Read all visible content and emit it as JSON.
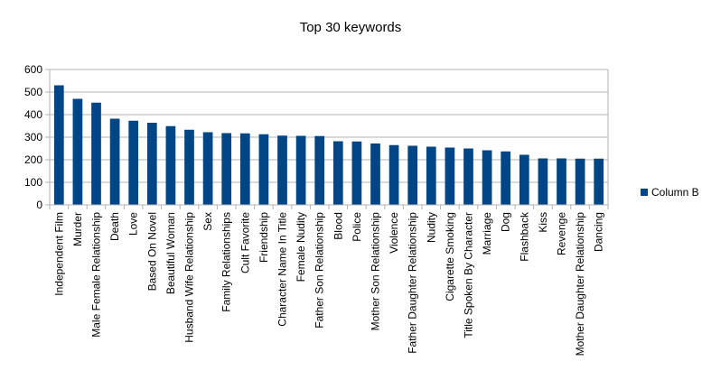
{
  "chart_data": {
    "type": "bar",
    "title": "Top 30 keywords",
    "xlabel": "",
    "ylabel": "",
    "ylim": [
      0,
      600
    ],
    "yticks": [
      0,
      100,
      200,
      300,
      400,
      500,
      600
    ],
    "grid": true,
    "legend_position": "right",
    "bar_color": "#004586",
    "categories": [
      "Independent Film",
      "Murder",
      "Male Female Relationship",
      "Death",
      "Love",
      "Based On Novel",
      "Beautiful Woman",
      "Husband Wife Relationship",
      "Sex",
      "Family Relationships",
      "Cult Favorite",
      "Friendship",
      "Character Name In Title",
      "Female Nudity",
      "Father Son Relationship",
      "Blood",
      "Police",
      "Mother Son Relationship",
      "Violence",
      "Father Daughter Relationship",
      "Nudity",
      "Cigarette Smoking",
      "Title Spoken By Character",
      "Marriage",
      "Dog",
      "Flashback",
      "Kiss",
      "Revenge",
      "Mother Daughter Relationship",
      "Dancing"
    ],
    "series": [
      {
        "name": "Column B",
        "values": [
          530,
          470,
          453,
          382,
          373,
          364,
          349,
          333,
          322,
          318,
          317,
          313,
          307,
          306,
          305,
          282,
          281,
          272,
          265,
          262,
          258,
          254,
          250,
          242,
          237,
          222,
          206,
          206,
          205,
          205
        ]
      }
    ]
  }
}
